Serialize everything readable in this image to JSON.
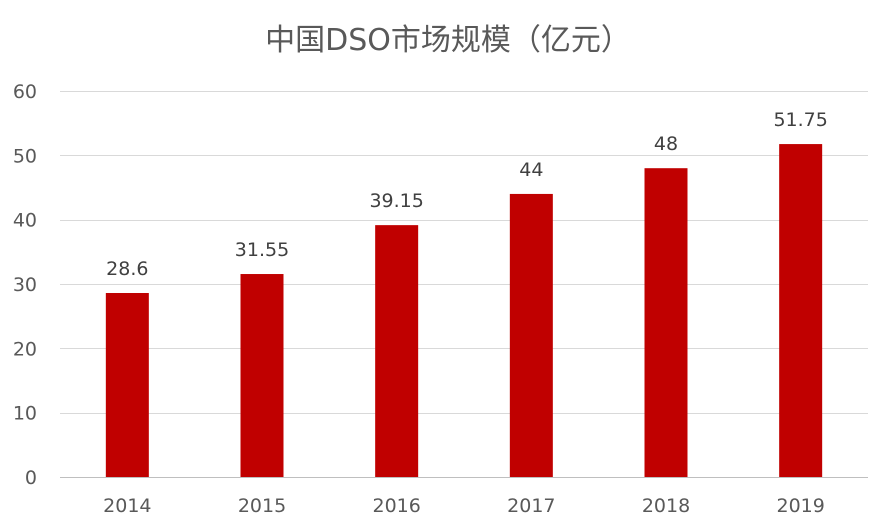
{
  "chart_data": {
    "type": "bar",
    "title": "中国DSO市场规模（亿元）",
    "categories": [
      "2014",
      "2015",
      "2016",
      "2017",
      "2018",
      "2019"
    ],
    "values": [
      28.6,
      31.55,
      39.15,
      44,
      48,
      51.75
    ],
    "data_labels": [
      "28.6",
      "31.55",
      "39.15",
      "44",
      "48",
      "51.75"
    ],
    "xlabel": "",
    "ylabel": "",
    "ylim": [
      0,
      60
    ],
    "y_ticks": [
      0,
      10,
      20,
      30,
      40,
      50,
      60
    ],
    "grid": true,
    "legend": "none",
    "bar_color": "#C00000"
  }
}
